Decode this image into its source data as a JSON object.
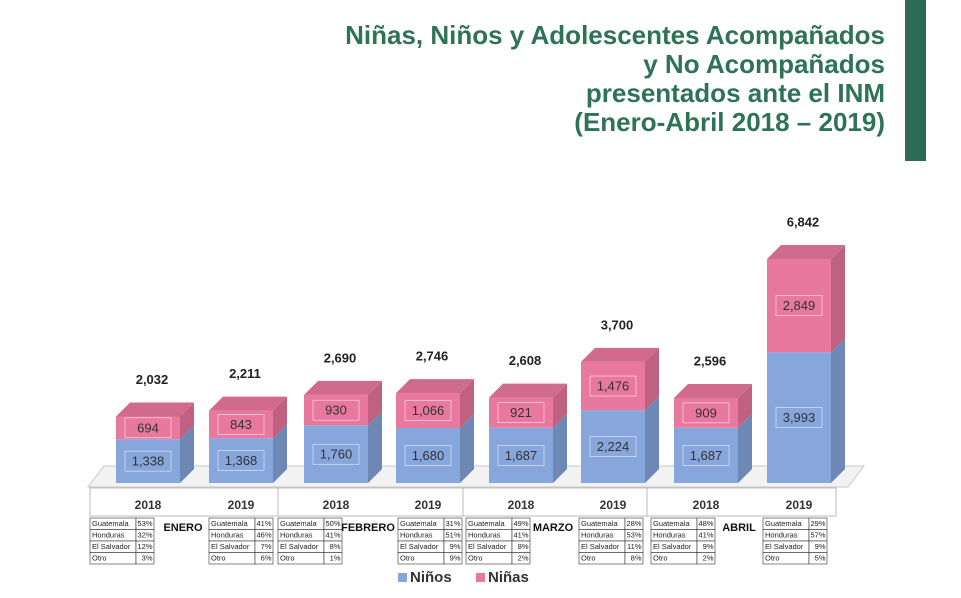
{
  "chart_data": {
    "type": "bar",
    "stacked": true,
    "title": [
      "Niñas, Niños y Adolescentes Acompañados",
      "y No Acompañados",
      "presentados ante el  INM",
      "(Enero-Abril 2018 – 2019)"
    ],
    "categories": [
      "2018",
      "2019",
      "2018",
      "2019",
      "2018",
      "2019",
      "2018",
      "2019"
    ],
    "groups": [
      "ENERO",
      "FEBRERO",
      "MARZO",
      "ABRIL"
    ],
    "series": [
      {
        "name": "Niños",
        "color": "#86a6dc",
        "values": [
          1338,
          1368,
          1760,
          1680,
          1687,
          2224,
          1687,
          3993
        ],
        "value_labels": [
          "1,338",
          "1,368",
          "1,760",
          "1,680",
          "1,687",
          "2,224",
          "1,687",
          "3,993"
        ]
      },
      {
        "name": "Niñas",
        "color": "#e9789e",
        "values": [
          694,
          843,
          930,
          1066,
          921,
          1476,
          909,
          2849
        ],
        "value_labels": [
          "694",
          "843",
          "930",
          "1,066",
          "921",
          "1,476",
          "909",
          "2,849"
        ]
      }
    ],
    "totals": [
      2032,
      2211,
      2690,
      2746,
      2608,
      3700,
      2596,
      6842
    ],
    "total_labels": [
      "2,032",
      "2,211",
      "2,690",
      "2,746",
      "2,608",
      "3,700",
      "2,596",
      "6,842"
    ],
    "breakdown": [
      {
        "countries": [
          "Guatemala",
          "Honduras",
          "El Salvador",
          "Otro"
        ],
        "values": [
          53,
          32,
          12,
          3
        ],
        "value_labels": [
          "53%",
          "32%",
          "12%",
          "3%"
        ]
      },
      {
        "countries": [
          "Guatemala",
          "Honduras",
          "El Salvador",
          "Otro"
        ],
        "values": [
          41,
          46,
          7,
          6
        ],
        "value_labels": [
          "41%",
          "46%",
          "7%",
          "6%"
        ]
      },
      {
        "countries": [
          "Guatemala",
          "Honduras",
          "El Salvador",
          "Otro"
        ],
        "values": [
          50,
          41,
          8,
          1
        ],
        "value_labels": [
          "50%",
          "41%",
          "8%",
          "1%"
        ]
      },
      {
        "countries": [
          "Guatemala",
          "Honduras",
          "El Salvador",
          "Otro"
        ],
        "values": [
          31,
          51,
          9,
          9
        ],
        "value_labels": [
          "31%",
          "51%",
          "9%",
          "9%"
        ]
      },
      {
        "countries": [
          "Guatemala",
          "Honduras",
          "El Salvador",
          "Otro"
        ],
        "values": [
          49,
          41,
          8,
          2
        ],
        "value_labels": [
          "49%",
          "41%",
          "8%",
          "2%"
        ]
      },
      {
        "countries": [
          "Guatemala",
          "Honduras",
          "El Salvador",
          "Otro"
        ],
        "values": [
          28,
          53,
          11,
          8
        ],
        "value_labels": [
          "28%",
          "53%",
          "11%",
          "8%"
        ]
      },
      {
        "countries": [
          "Guatemala",
          "Honduras",
          "El Salvador",
          "Otro"
        ],
        "values": [
          48,
          41,
          9,
          2
        ],
        "value_labels": [
          "48%",
          "41%",
          "9%",
          "2%"
        ]
      },
      {
        "countries": [
          "Guatemala",
          "Honduras",
          "El Salvador",
          "Otro"
        ],
        "values": [
          29,
          57,
          9,
          5
        ],
        "value_labels": [
          "29%",
          "57%",
          "9%",
          "5%"
        ]
      }
    ],
    "legend": "bottom"
  }
}
